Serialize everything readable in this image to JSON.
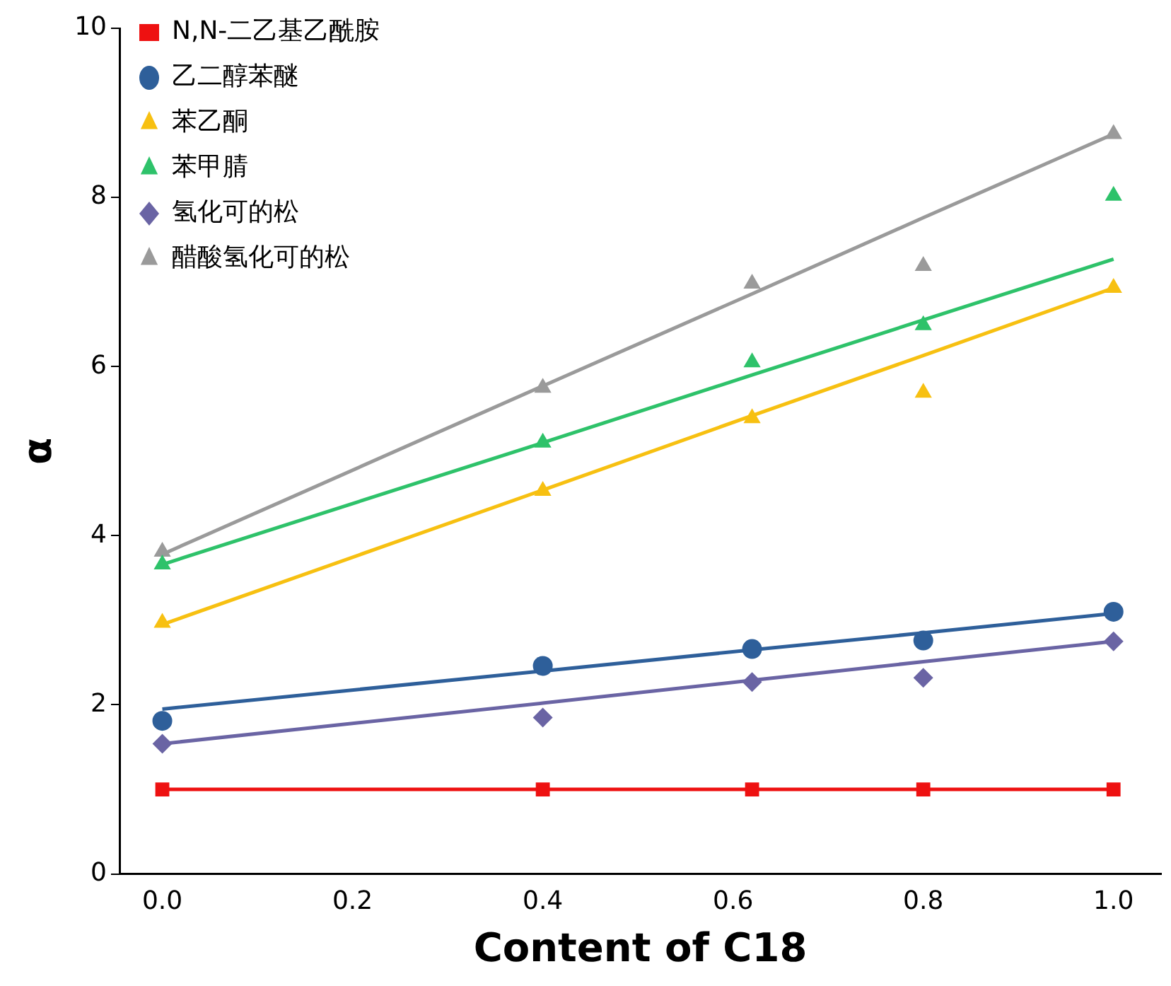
{
  "chart_data": {
    "type": "scatter",
    "xlabel": "Content of C18",
    "ylabel": "α",
    "xlim": [
      -0.045,
      1.05
    ],
    "ylim": [
      0,
      10
    ],
    "xticks": [
      {
        "value": 0,
        "label": "0.0"
      },
      {
        "value": 0.2,
        "label": "0.2"
      },
      {
        "value": 0.4,
        "label": "0.4"
      },
      {
        "value": 0.6,
        "label": "0.6"
      },
      {
        "value": 0.8,
        "label": "0.8"
      },
      {
        "value": 1,
        "label": "1.0"
      }
    ],
    "yticks": [
      0,
      2,
      4,
      6,
      8,
      10
    ],
    "grid": false,
    "legend": "top left",
    "x": [
      0,
      0.4,
      0.62,
      0.8,
      1.0
    ],
    "series": [
      {
        "name": "N,N-二乙基乙酰胺",
        "color": "#ee1111",
        "marker": "square",
        "values": [
          1.0,
          1.0,
          1.0,
          1.0,
          1.0
        ]
      },
      {
        "name": "乙二醇苯醚",
        "color": "#2e5f9a",
        "marker": "circle",
        "values": [
          1.81,
          2.46,
          2.66,
          2.76,
          3.1
        ]
      },
      {
        "name": "苯乙酮",
        "color": "#f7c011",
        "marker": "triangle",
        "values": [
          2.97,
          4.53,
          5.39,
          5.69,
          6.93
        ]
      },
      {
        "name": "苯甲腈",
        "color": "#2ec26a",
        "marker": "triangle",
        "values": [
          3.66,
          5.1,
          6.05,
          6.49,
          8.02
        ]
      },
      {
        "name": "氢化可的松",
        "color": "#6a64a4",
        "marker": "diamond",
        "values": [
          1.54,
          1.85,
          2.27,
          2.32,
          2.75
        ]
      },
      {
        "name": "醋酸氢化可的松",
        "color": "#9a9a9a",
        "marker": "triangle",
        "values": [
          3.81,
          5.75,
          6.98,
          7.19,
          8.75
        ]
      },
      {
        "type": "line",
        "color": "#ee1111",
        "marker": "none",
        "values": [
          1.0,
          1.0,
          1.0,
          1.0,
          1.0
        ]
      },
      {
        "type": "line",
        "color": "#2e5f9a",
        "marker": "none",
        "values": [
          1.95,
          2.4,
          2.65,
          2.85,
          3.08
        ]
      },
      {
        "type": "line",
        "color": "#f7c011",
        "marker": "none",
        "values": [
          2.95,
          4.54,
          5.42,
          6.13,
          6.93
        ]
      },
      {
        "type": "line",
        "color": "#2ec26a",
        "marker": "none",
        "values": [
          3.66,
          5.1,
          5.9,
          6.55,
          7.27
        ]
      },
      {
        "type": "line",
        "color": "#6a64a4",
        "marker": "none",
        "values": [
          1.54,
          2.02,
          2.29,
          2.51,
          2.75
        ]
      },
      {
        "type": "line",
        "color": "#9a9a9a",
        "marker": "none",
        "values": [
          3.78,
          5.77,
          6.86,
          7.76,
          8.75
        ]
      }
    ]
  }
}
